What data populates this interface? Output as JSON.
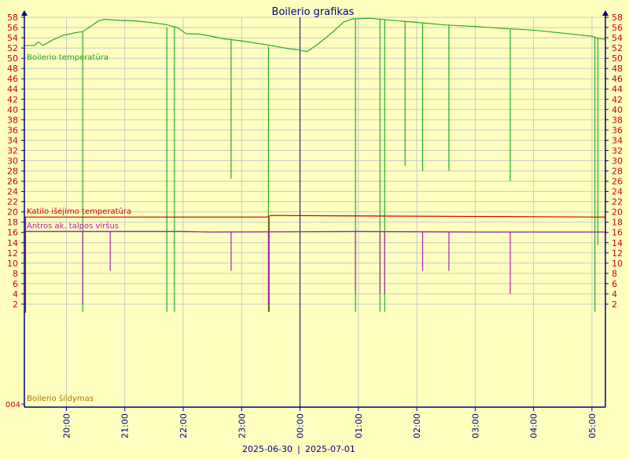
{
  "chart_data": {
    "type": "line",
    "title": "Boilerio grafikas",
    "date_labels": [
      "2025-06-30",
      "|",
      "2025-07-01"
    ],
    "y_ticks": [
      2,
      4,
      6,
      8,
      10,
      12,
      14,
      16,
      18,
      20,
      22,
      24,
      26,
      28,
      30,
      32,
      34,
      36,
      38,
      40,
      42,
      44,
      46,
      48,
      50,
      52,
      54,
      56,
      58
    ],
    "ylim": [
      0,
      58
    ],
    "x_ticks": [
      {
        "label": "20:00",
        "t": 20.0
      },
      {
        "label": "21:00",
        "t": 21.0
      },
      {
        "label": "22:00",
        "t": 22.0
      },
      {
        "label": "23:00",
        "t": 23.0
      },
      {
        "label": "00:00",
        "t": 24.0
      },
      {
        "label": "01:00",
        "t": 25.0
      },
      {
        "label": "02:00",
        "t": 26.0
      },
      {
        "label": "03:00",
        "t": 27.0
      },
      {
        "label": "04:00",
        "t": 28.0
      },
      {
        "label": "05:00",
        "t": 29.0
      }
    ],
    "xlim": [
      19.28,
      29.23
    ],
    "midnight": 24.0,
    "heating_panel": {
      "label": "Boilerio šildymas",
      "tick_label": "004"
    },
    "grid": true,
    "colors": {
      "background": "#ffffc0",
      "grid": "#c8c8c8",
      "axis": "#000080",
      "tick_text": "#cc0000",
      "boiler": "#22aa22",
      "katilo": "#cc0000",
      "antros": "#aa22aa",
      "heating": "#aa7700"
    },
    "series": [
      {
        "name": "Boilerio temperatūra",
        "color": "#22aa22",
        "points": [
          [
            19.28,
            52.5
          ],
          [
            19.45,
            52.5
          ],
          [
            19.52,
            53.2
          ],
          [
            19.6,
            52.5
          ],
          [
            19.75,
            53.5
          ],
          [
            19.95,
            54.5
          ],
          [
            20.05,
            54.7
          ],
          [
            20.15,
            55.0
          ],
          [
            20.28,
            55.2
          ],
          [
            20.45,
            56.5
          ],
          [
            20.55,
            57.3
          ],
          [
            20.65,
            57.6
          ],
          [
            20.9,
            57.4
          ],
          [
            21.2,
            57.3
          ],
          [
            21.5,
            56.9
          ],
          [
            21.7,
            56.6
          ],
          [
            21.9,
            56.0
          ],
          [
            22.0,
            55.2
          ],
          [
            22.05,
            54.8
          ],
          [
            22.3,
            54.7
          ],
          [
            22.7,
            53.8
          ],
          [
            23.0,
            53.4
          ],
          [
            23.5,
            52.5
          ],
          [
            23.8,
            51.9
          ],
          [
            24.0,
            51.6
          ],
          [
            24.12,
            51.3
          ],
          [
            24.3,
            52.7
          ],
          [
            24.55,
            55.0
          ],
          [
            24.75,
            57.1
          ],
          [
            24.9,
            57.7
          ],
          [
            25.2,
            57.8
          ],
          [
            25.5,
            57.5
          ],
          [
            26.0,
            57.0
          ],
          [
            26.5,
            56.5
          ],
          [
            27.0,
            56.2
          ],
          [
            27.5,
            55.8
          ],
          [
            28.0,
            55.5
          ],
          [
            28.5,
            54.9
          ],
          [
            29.0,
            54.3
          ],
          [
            29.1,
            53.9
          ],
          [
            29.23,
            53.7
          ]
        ],
        "dips": [
          [
            20.28,
            0.5,
            55.2
          ],
          [
            21.72,
            0.5,
            56.0
          ],
          [
            21.85,
            0.5,
            56.0
          ],
          [
            22.82,
            26.5,
            53.5
          ],
          [
            23.46,
            0.5,
            52.3
          ],
          [
            24.95,
            0.5,
            57.7
          ],
          [
            25.37,
            0.5,
            57.6
          ],
          [
            25.45,
            0.5,
            57.5
          ],
          [
            25.8,
            29.0,
            57.2
          ],
          [
            26.1,
            28.0,
            57.0
          ],
          [
            26.55,
            28.0,
            56.6
          ],
          [
            27.6,
            26.0,
            55.6
          ],
          [
            29.05,
            0.5,
            54.2
          ],
          [
            29.1,
            13.5,
            54.0
          ]
        ]
      },
      {
        "name": "Katilo išėjimo temperatūra",
        "color": "#cc0000",
        "points": [
          [
            19.28,
            19.0
          ],
          [
            23.43,
            19.0
          ],
          [
            23.5,
            19.3
          ],
          [
            29.23,
            19.0
          ]
        ],
        "dips": [
          [
            19.3,
            0.3,
            19.0
          ],
          [
            23.47,
            0.5,
            19.0
          ]
        ]
      },
      {
        "name": "Antros ak. talpos viršus",
        "color": "#aa22aa",
        "points": [
          [
            19.28,
            16.2
          ],
          [
            22.0,
            16.2
          ],
          [
            22.5,
            16.1
          ],
          [
            25.0,
            16.2
          ],
          [
            27.0,
            16.1
          ],
          [
            29.23,
            16.1
          ]
        ],
        "dips": [
          [
            20.28,
            2.0,
            16.2
          ],
          [
            20.75,
            8.5,
            16.2
          ],
          [
            22.82,
            8.5,
            16.2
          ],
          [
            23.46,
            2.0,
            16.2
          ],
          [
            24.95,
            4.5,
            16.2
          ],
          [
            25.37,
            4.0,
            16.2
          ],
          [
            25.45,
            4.0,
            16.2
          ],
          [
            26.1,
            8.5,
            16.2
          ],
          [
            26.55,
            8.5,
            16.2
          ],
          [
            27.6,
            4.0,
            16.1
          ]
        ]
      }
    ]
  }
}
